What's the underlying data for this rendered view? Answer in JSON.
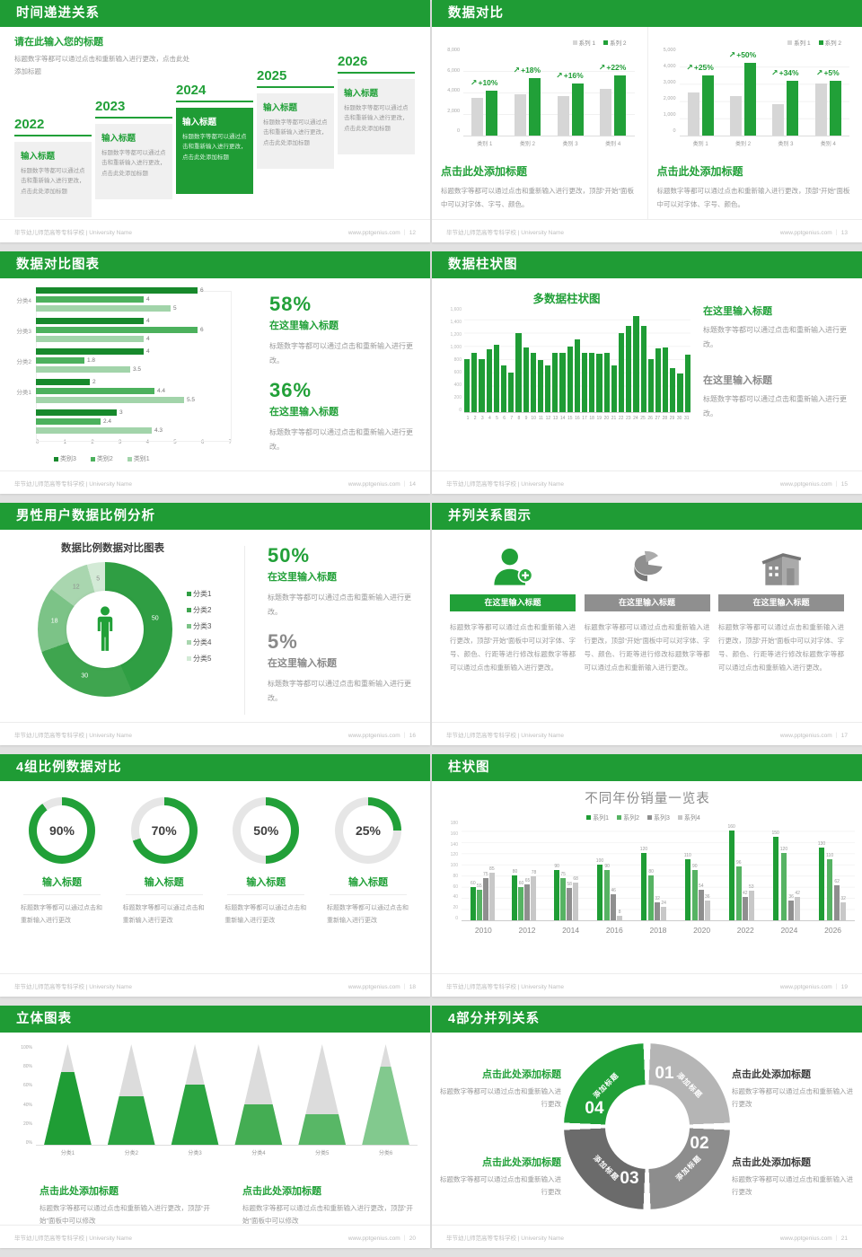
{
  "accent": "#1f9c35",
  "footer": {
    "left": "毕节幼儿师范高等专科学校 | University Name",
    "site": "www.pptgenius.com"
  },
  "slides": [
    {
      "header": "时间递进关系",
      "footer_right": "www.pptgenius.com ｜ 12",
      "intro": {
        "title": "请在此输入您的标题",
        "body": "标题数字等都可以通过点击和重新输入进行更改，点击此处添加标题"
      },
      "items": [
        {
          "year": "2022",
          "title": "输入标题",
          "body": "标题数字等都可以通过点击和重新输入进行更改，点击此处添加标题"
        },
        {
          "year": "2023",
          "title": "输入标题",
          "body": "标题数字等都可以通过点击和重新输入进行更改，点击此处添加标题"
        },
        {
          "year": "2024",
          "title": "输入标题",
          "body": "标题数字等都可以通过点击和重新输入进行更改，点击此处添加标题"
        },
        {
          "year": "2025",
          "title": "输入标题",
          "body": "标题数字等都可以通过点击和重新输入进行更改，点击此处添加标题"
        },
        {
          "year": "2026",
          "title": "输入标题",
          "body": "标题数字等都可以通过点击和重新输入进行更改，点击此处添加标题"
        }
      ]
    },
    {
      "header": "数据对比",
      "footer_right": "www.pptgenius.com ｜ 13",
      "left": {
        "caption_title": "点击此处添加标题",
        "caption_body": "标题数字等都可以通过点击和重新输入进行更改，顶部“开始”面板中可以对字体、字号、颜色。"
      },
      "right": {
        "caption_title": "点击此处添加标题",
        "caption_body": "标题数字等都可以通过点击和重新输入进行更改，顶部“开始”面板中可以对字体、字号、颜色。"
      }
    },
    {
      "header": "数据对比图表",
      "footer_right": "www.pptgenius.com ｜ 14",
      "stats": [
        {
          "pct": "58%",
          "title": "在这里输入标题",
          "body": "标题数字等都可以通过点击和重新输入进行更改。"
        },
        {
          "pct": "36%",
          "title": "在这里输入标题",
          "body": "标题数字等都可以通过点击和重新输入进行更改。"
        }
      ]
    },
    {
      "header": "数据柱状图",
      "footer_right": "www.pptgenius.com ｜ 15",
      "blocks": [
        {
          "title": "在这里输入标题",
          "body": "标题数字等都可以通过点击和重新输入进行更改。"
        },
        {
          "title": "在这里输入标题",
          "body": "标题数字等都可以通过点击和重新输入进行更改。"
        }
      ]
    },
    {
      "header": "男性用户数据比例分析",
      "footer_right": "www.pptgenius.com ｜ 16",
      "stats": [
        {
          "pct": "50%",
          "title": "在这里输入标题",
          "body": "标题数字等都可以通过点击和重新输入进行更改。"
        },
        {
          "pct": "5%",
          "title": "在这里输入标题",
          "body": "标题数字等都可以通过点击和重新输入进行更改。"
        }
      ]
    },
    {
      "header": "并列关系图示",
      "footer_right": "www.pptgenius.com ｜ 17",
      "columns": [
        {
          "icon": "nurse-add-icon",
          "title": "在这里输入标题",
          "body": "标题数字等都可以通过点击和重新输入进行更改，顶部“开始”面板中可以对字体、字号、颜色、行距等进行修改标题数字等都可以通过点击和重新输入进行更改。"
        },
        {
          "icon": "pie-3d-icon",
          "title": "在这里输入标题",
          "body": "标题数字等都可以通过点击和重新输入进行更改，顶部“开始”面板中可以对字体、字号、颜色、行距等进行修改标题数字等都可以通过点击和重新输入进行更改。"
        },
        {
          "icon": "building-icon",
          "title": "在这里输入标题",
          "body": "标题数字等都可以通过点击和重新输入进行更改，顶部“开始”面板中可以对字体、字号、颜色、行距等进行修改标题数字等都可以通过点击和重新输入进行更改。"
        }
      ]
    },
    {
      "header": "4组比例数据对比",
      "footer_right": "www.pptgenius.com ｜ 18",
      "gauges": [
        {
          "value": 90,
          "label": "90%",
          "title": "输入标题",
          "body": "标题数字等都可以通过点击和重新输入进行更改"
        },
        {
          "value": 70,
          "label": "70%",
          "title": "输入标题",
          "body": "标题数字等都可以通过点击和重新输入进行更改"
        },
        {
          "value": 50,
          "label": "50%",
          "title": "输入标题",
          "body": "标题数字等都可以通过点击和重新输入进行更改"
        },
        {
          "value": 25,
          "label": "25%",
          "title": "输入标题",
          "body": "标题数字等都可以通过点击和重新输入进行更改"
        }
      ]
    },
    {
      "header": "柱状图",
      "footer_right": "www.pptgenius.com ｜ 19"
    },
    {
      "header": "立体图表",
      "footer_right": "www.pptgenius.com ｜ 20",
      "captions": [
        {
          "title": "点击此处添加标题",
          "body": "标题数字等都可以通过点击和重新输入进行更改，顶部“开始”面板中可以修改"
        },
        {
          "title": "点击此处添加标题",
          "body": "标题数字等都可以通过点击和重新输入进行更改，顶部“开始”面板中可以修改"
        }
      ]
    },
    {
      "header": "4部分并列关系",
      "footer_right": "www.pptgenius.com ｜ 21",
      "ring": {
        "segments": [
          {
            "num": "01",
            "label": "添加标题",
            "color": "#b5b5b5"
          },
          {
            "num": "02",
            "label": "添加标题",
            "color": "#8d8d8d"
          },
          {
            "num": "03",
            "label": "添加标题",
            "color": "#6b6b6b"
          },
          {
            "num": "04",
            "label": "添加标题",
            "color": "#21a038"
          }
        ]
      },
      "blocks": [
        {
          "title": "点击此处添加标题",
          "body": "标题数字等都可以通过点击和重新输入进行更改"
        },
        {
          "title": "点击此处添加标题",
          "body": "标题数字等都可以通过点击和重新输入进行更改"
        },
        {
          "title": "点击此处添加标题",
          "body": "标题数字等都可以通过点击和重新输入进行更改"
        },
        {
          "title": "点击此处添加标题",
          "body": "标题数字等都可以通过点击和重新输入进行更改"
        }
      ]
    }
  ],
  "chart_data": [
    {
      "id": "compare-left",
      "type": "bar",
      "categories": [
        "类别 1",
        "类别 2",
        "类别 3",
        "类别 4"
      ],
      "series": [
        {
          "name": "系列 1",
          "color": "#d6d6d6",
          "values": [
            3500,
            3800,
            3700,
            4300
          ]
        },
        {
          "name": "系列 2",
          "color": "#21a038",
          "values": [
            4200,
            5300,
            4800,
            5600
          ]
        }
      ],
      "growth_labels": [
        "+10%",
        "+18%",
        "+16%",
        "+22%"
      ],
      "ylim": [
        0,
        8000
      ],
      "yticks": [
        "8,000",
        "6,000",
        "4,000",
        "2,000",
        "0"
      ],
      "legend_position": "top-right",
      "grid": true
    },
    {
      "id": "compare-right",
      "type": "bar",
      "categories": [
        "类别 1",
        "类别 2",
        "类别 3",
        "类别 4"
      ],
      "series": [
        {
          "name": "系列 1",
          "color": "#d6d6d6",
          "values": [
            2500,
            2300,
            1800,
            3000
          ]
        },
        {
          "name": "系列 2",
          "color": "#21a038",
          "values": [
            3500,
            4200,
            3200,
            3200
          ]
        }
      ],
      "growth_labels": [
        "+25%",
        "+50%",
        "+34%",
        "+5%"
      ],
      "ylim": [
        0,
        5000
      ],
      "yticks": [
        "5,000",
        "4,000",
        "3,000",
        "2,000",
        "1,000",
        "0"
      ],
      "legend_position": "top-right",
      "grid": true
    },
    {
      "id": "compare-hbar",
      "type": "bar-horizontal",
      "groups": [
        "分类4",
        "分类3",
        "分类2",
        "分类1",
        ""
      ],
      "series_names": [
        "类别3",
        "类别2",
        "类别1"
      ],
      "colors": [
        "#17892c",
        "#4cb15d",
        "#a2d4aa"
      ],
      "values": [
        [
          6,
          4,
          5
        ],
        [
          4,
          6,
          4
        ],
        [
          4,
          1.8,
          3.5
        ],
        [
          2,
          4.4,
          5.5
        ],
        [
          3,
          2.4,
          4.3
        ]
      ],
      "xlim": [
        0,
        7
      ],
      "xticks": [
        "0",
        "1",
        "2",
        "3",
        "4",
        "5",
        "6",
        "7"
      ],
      "legend_position": "bottom"
    },
    {
      "id": "daily-columns",
      "type": "bar",
      "title": "多数据柱状图",
      "x": [
        "1",
        "2",
        "3",
        "4",
        "5",
        "6",
        "7",
        "8",
        "9",
        "10",
        "11",
        "12",
        "13",
        "14",
        "15",
        "16",
        "17",
        "18",
        "19",
        "20",
        "21",
        "22",
        "23",
        "24",
        "25",
        "26",
        "27",
        "28",
        "29",
        "30",
        "31"
      ],
      "values": [
        800,
        900,
        800,
        950,
        1020,
        700,
        600,
        1200,
        980,
        890,
        780,
        700,
        890,
        900,
        990,
        1100,
        900,
        890,
        880,
        900,
        700,
        1200,
        1300,
        1450,
        1300,
        800,
        960,
        970,
        660,
        590,
        870
      ],
      "color": "#1f9c35",
      "ylim": [
        0,
        1600
      ],
      "yticks": [
        "1,600",
        "1,400",
        "1,200",
        "1,000",
        "800",
        "600",
        "400",
        "200",
        "0"
      ],
      "grid": true
    },
    {
      "id": "male-donut",
      "type": "pie",
      "title": "数据比例数据对比图表",
      "labels": [
        "分类1",
        "分类2",
        "分类3",
        "分类4",
        "分类5"
      ],
      "values": [
        50,
        30,
        18,
        12,
        5
      ],
      "colors": [
        "#2f9e43",
        "#3fa54f",
        "#7cc387",
        "#a9d6af",
        "#d3ead6"
      ],
      "center_icon": "male-person-icon",
      "legend_position": "right"
    },
    {
      "id": "ratio-gauges",
      "type": "donut-gauges",
      "values": [
        90,
        70,
        50,
        25
      ],
      "color": "#21a038",
      "track": "#e6e6e6"
    },
    {
      "id": "yearly-sales",
      "type": "bar",
      "title": "不同年份销量一览表",
      "categories": [
        "2010",
        "2012",
        "2014",
        "2016",
        "2018",
        "2020",
        "2022",
        "2024",
        "2026"
      ],
      "series": [
        {
          "name": "系列1",
          "color": "#1f9d35",
          "values": [
            60,
            80,
            90,
            100,
            120,
            110,
            160,
            150,
            130
          ]
        },
        {
          "name": "系列2",
          "color": "#56b363",
          "values": [
            55,
            60,
            75,
            90,
            80,
            90,
            96,
            120,
            110
          ]
        },
        {
          "name": "系列3",
          "color": "#8f8f8f",
          "values": [
            75,
            65,
            58,
            46,
            32,
            54,
            42,
            36,
            62
          ]
        },
        {
          "name": "系列4",
          "color": "#c8c8c8",
          "values": [
            85,
            78,
            68,
            8,
            24,
            36,
            53,
            42,
            32
          ]
        }
      ],
      "ylim": [
        0,
        180
      ],
      "yticks": [
        "180",
        "160",
        "140",
        "120",
        "100",
        "80",
        "60",
        "40",
        "20",
        "0"
      ],
      "legend_position": "top",
      "grid": true
    },
    {
      "id": "cone-chart",
      "type": "cone-columns",
      "categories": [
        "分类1",
        "分类2",
        "分类3",
        "分类4",
        "分类5",
        "分类6"
      ],
      "fill_pct": [
        72,
        48,
        60,
        40,
        30,
        78
      ],
      "fill_colors": [
        "#1f9d35",
        "#2ba441",
        "#2ba441",
        "#44ad53",
        "#58b766",
        "#82c98e"
      ],
      "body_color": "#dcdcdc",
      "yticks": [
        "100%",
        "80%",
        "60%",
        "40%",
        "20%",
        "0%"
      ]
    },
    {
      "id": "ring-4-parts",
      "type": "pie",
      "labels": [
        "01",
        "02",
        "03",
        "04"
      ],
      "values": [
        25,
        25,
        25,
        25
      ],
      "colors": [
        "#b5b5b5",
        "#8d8d8d",
        "#6b6b6b",
        "#21a038"
      ]
    }
  ]
}
